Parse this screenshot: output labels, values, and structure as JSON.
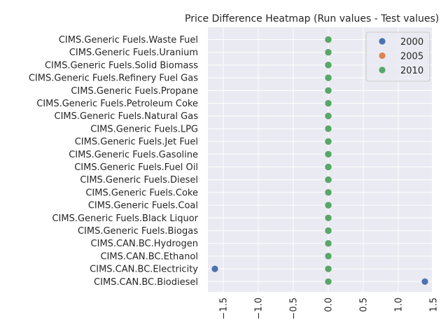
{
  "chart_data": {
    "type": "scatter",
    "title": "Price Difference Heatmap (Run values - Test values)",
    "xlabel": "",
    "ylabel": "",
    "xlim": [
      -1.72,
      1.48
    ],
    "xticks": [
      -1.5,
      -1.0,
      -0.5,
      0.0,
      0.5,
      1.0,
      1.5
    ],
    "xtick_labels": [
      "−1.5",
      "−1.0",
      "−0.5",
      "0.0",
      "0.5",
      "1.0",
      "1.5"
    ],
    "grid": true,
    "legend_position": "top-right",
    "categories": [
      "CIMS.Generic Fuels.Waste Fuel",
      "CIMS.Generic Fuels.Uranium",
      "CIMS.Generic Fuels.Solid Biomass",
      "CIMS.Generic Fuels.Refinery Fuel Gas",
      "CIMS.Generic Fuels.Propane",
      "CIMS.Generic Fuels.Petroleum Coke",
      "CIMS.Generic Fuels.Natural Gas",
      "CIMS.Generic Fuels.LPG",
      "CIMS.Generic Fuels.Jet Fuel",
      "CIMS.Generic Fuels.Gasoline",
      "CIMS.Generic Fuels.Fuel Oil",
      "CIMS.Generic Fuels.Diesel",
      "CIMS.Generic Fuels.Coke",
      "CIMS.Generic Fuels.Coal",
      "CIMS.Generic Fuels.Black Liquor",
      "CIMS.Generic Fuels.Biogas",
      "CIMS.CAN.BC.Hydrogen",
      "CIMS.CAN.BC.Ethanol",
      "CIMS.CAN.BC.Electricity",
      "CIMS.CAN.BC.Biodiesel"
    ],
    "series": [
      {
        "name": "2000",
        "color": "#4c72b0",
        "values": [
          0,
          0,
          0,
          0,
          0,
          0,
          0,
          0,
          0,
          0,
          0,
          0,
          0,
          0,
          0,
          0,
          0,
          0,
          -1.62,
          1.38
        ]
      },
      {
        "name": "2005",
        "color": "#dd8452",
        "values": [
          0,
          0,
          0,
          0,
          0,
          0,
          0,
          0,
          0,
          0,
          0,
          0,
          0,
          0,
          0,
          0,
          0,
          0,
          0,
          0
        ]
      },
      {
        "name": "2010",
        "color": "#55a868",
        "values": [
          0,
          0,
          0,
          0,
          0,
          0,
          0,
          0,
          0,
          0,
          0,
          0,
          0,
          0,
          0,
          0,
          0,
          0,
          0,
          0
        ]
      }
    ]
  }
}
